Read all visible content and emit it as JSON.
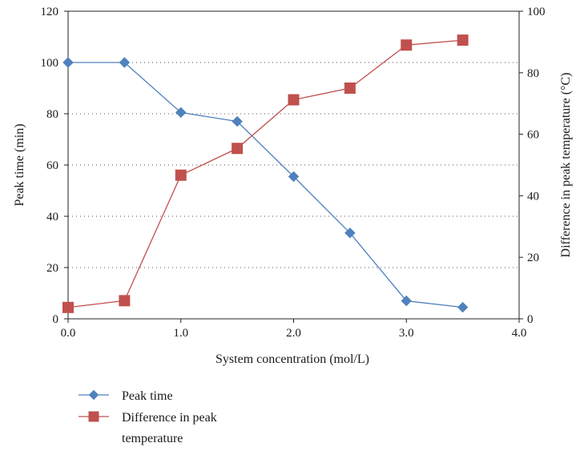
{
  "chart_data": {
    "type": "line",
    "xlabel": "System concentration (mol/L)",
    "ylabel_left": "Peak time (min)",
    "ylabel_right": "Difference in peak temperature (°C)",
    "xlim": [
      0,
      4.0
    ],
    "ylim_left": [
      0,
      120
    ],
    "ylim_right": [
      0,
      100
    ],
    "x_ticks": [
      "0.0",
      "1.0",
      "2.0",
      "3.0",
      "4.0"
    ],
    "y_left_ticks": [
      "0",
      "20",
      "40",
      "60",
      "80",
      "100",
      "120"
    ],
    "y_right_ticks": [
      "0",
      "20",
      "40",
      "60",
      "80",
      "100"
    ],
    "grid": "horizontal dotted",
    "legend_position": "bottom-left",
    "series": [
      {
        "name": "Peak time",
        "axis": "left",
        "marker": "diamond",
        "color": "#4f81bd",
        "x": [
          0.0,
          0.5,
          1.0,
          1.5,
          2.0,
          2.5,
          3.0,
          3.5
        ],
        "values": [
          100,
          100,
          80.5,
          77,
          55.5,
          33.5,
          7,
          4.5
        ]
      },
      {
        "name": "Difference in peak temperature",
        "legend_lines": [
          "Difference in peak",
          "temperature"
        ],
        "axis": "right",
        "marker": "square",
        "color": "#c0504d",
        "x": [
          0.0,
          0.5,
          1.0,
          1.5,
          2.0,
          2.5,
          3.0,
          3.5
        ],
        "values": [
          3.7,
          5.9,
          46.7,
          55.4,
          71.2,
          75,
          89,
          90.6
        ]
      }
    ]
  }
}
